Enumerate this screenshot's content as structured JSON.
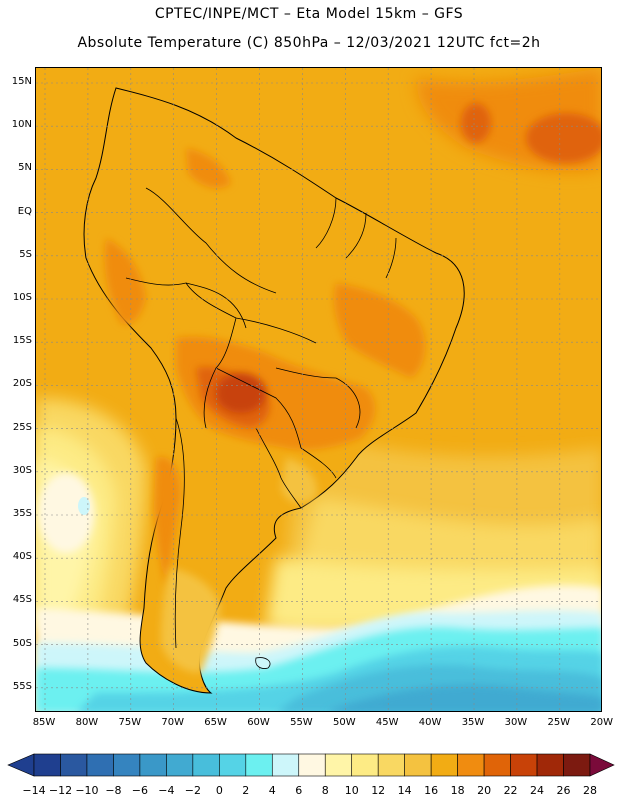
{
  "title": {
    "line1": "CPTEC/INPE/MCT –  Eta Model 15km – GFS",
    "line2": "Absolute Temperature (C) 850hPa – 12/03/2021 12UTC fct=2h"
  },
  "map": {
    "latitude_labels": [
      "15N",
      "10N",
      "5N",
      "EQ",
      "5S",
      "10S",
      "15S",
      "20S",
      "25S",
      "30S",
      "35S",
      "40S",
      "45S",
      "50S",
      "55S"
    ],
    "longitude_labels": [
      "85W",
      "80W",
      "75W",
      "70W",
      "65W",
      "60W",
      "55W",
      "50W",
      "45W",
      "40W",
      "35W",
      "30W",
      "25W",
      "20W"
    ]
  },
  "colorbar": {
    "labels": [
      "-14",
      "-12",
      "-10",
      "-8",
      "-6",
      "-4",
      "-2",
      "0",
      "2",
      "4",
      "6",
      "8",
      "10",
      "12",
      "14",
      "16",
      "18",
      "20",
      "22",
      "24",
      "26",
      "28"
    ],
    "colors": [
      "#1f3f8f",
      "#2a58a0",
      "#2f6fb2",
      "#3584bf",
      "#3a98c8",
      "#41aad1",
      "#48bedb",
      "#55d3e6",
      "#6cf0f0",
      "#cdf6fa",
      "#fff8e2",
      "#fff5a8",
      "#fdeb85",
      "#f9d862",
      "#f4c240",
      "#f2ac14",
      "#f08c10",
      "#e06408",
      "#c84208",
      "#a02808",
      "#7c1a10"
    ],
    "under_color": "#1f3f8f",
    "over_color": "#7a0a3a"
  }
}
